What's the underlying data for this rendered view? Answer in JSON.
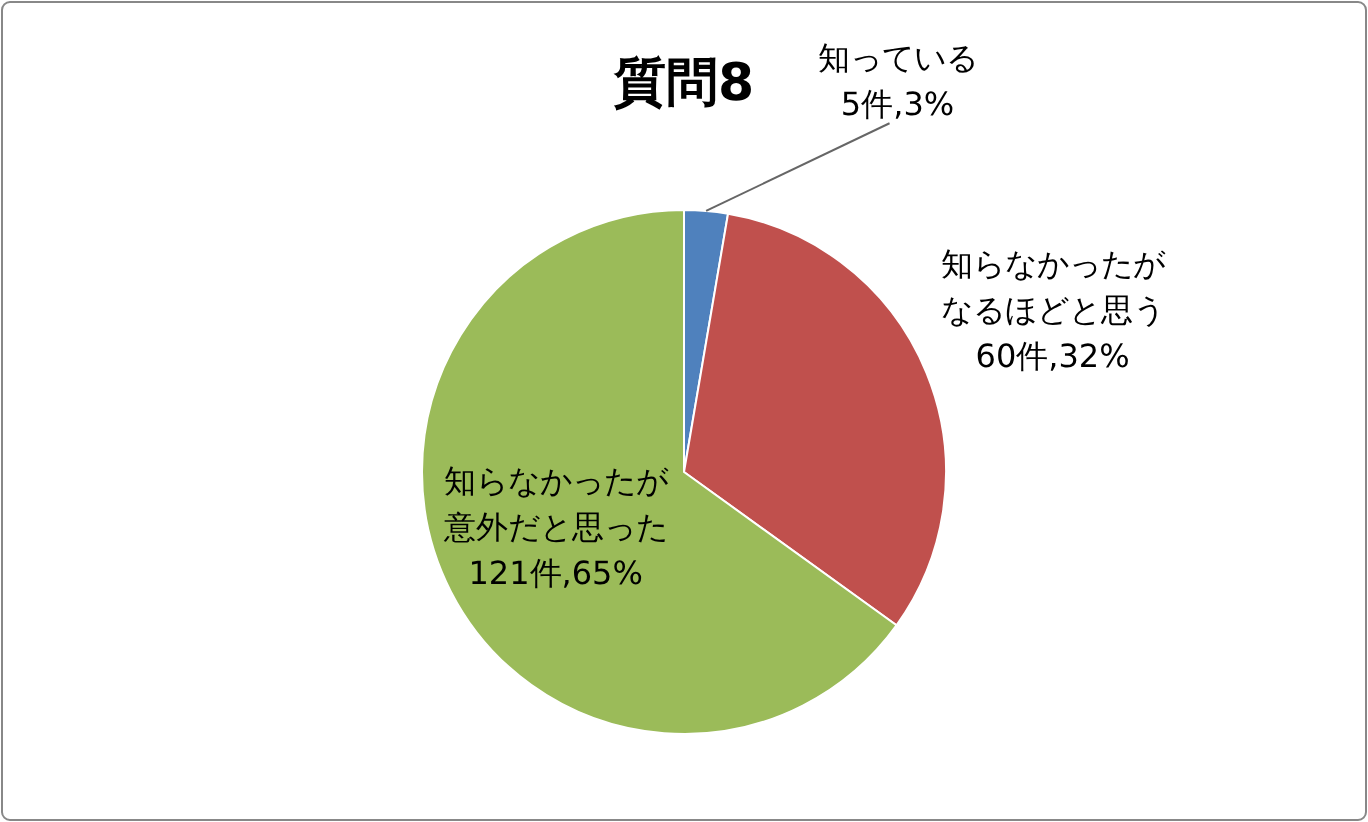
{
  "chart_data": {
    "type": "pie",
    "title": "質問8",
    "categories": [
      "知っている",
      "知らなかったがなるほどと思う",
      "知らなかったが意外だと思った"
    ],
    "values": [
      5,
      60,
      121
    ],
    "value_labels": [
      "5件,3%",
      "60件,32%",
      "121件,65%"
    ],
    "colors": [
      "#4f81bd",
      "#c0504d",
      "#9bbb59"
    ]
  }
}
